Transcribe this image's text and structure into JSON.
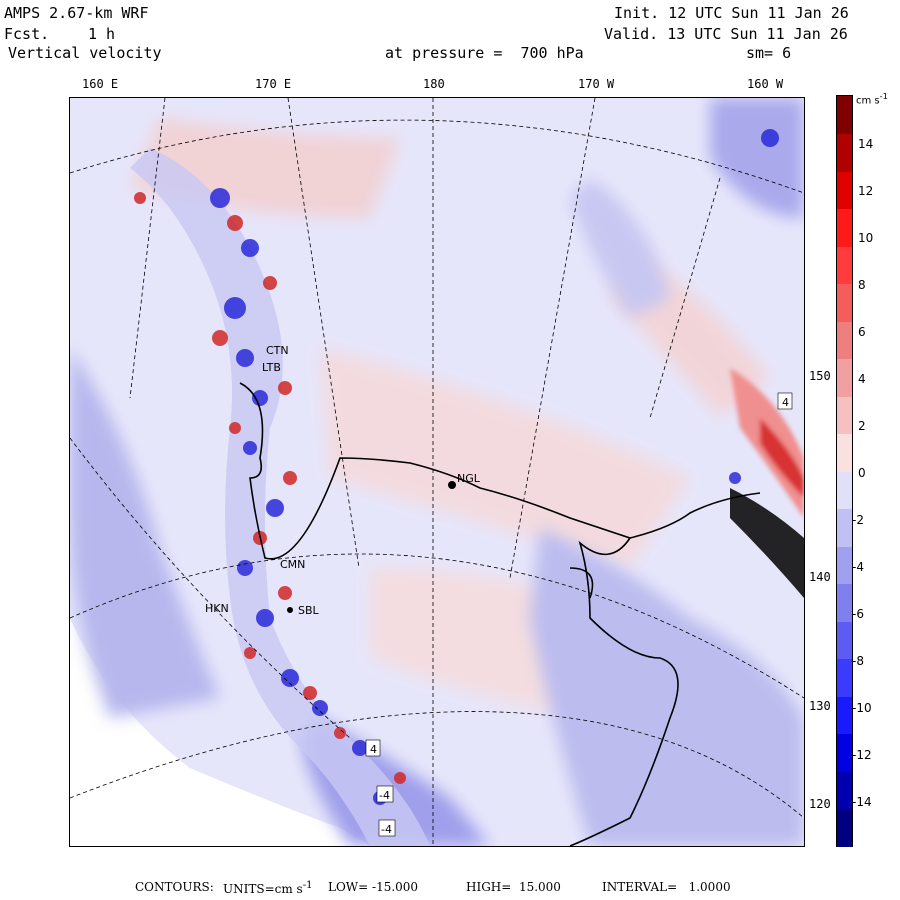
{
  "header": {
    "model": "AMPS 2.67-km WRF",
    "fcst_label": "Fcst.",
    "fcst_value": "1 h",
    "field": "Vertical velocity",
    "init": "Init. 12 UTC Sun 11 Jan 26",
    "valid": "Valid. 13 UTC Sun 11 Jan 26",
    "pressure_label": "at pressure =  700 hPa",
    "smoothing": "sm= 6"
  },
  "lon_labels": [
    "160 E",
    "170 E",
    "180",
    "170 W",
    "160 W"
  ],
  "lat_labels": [
    "150 W",
    "140 W",
    "130 W",
    "120 W"
  ],
  "stations": [
    "NGL",
    "CTN",
    "LTB",
    "HKN",
    "CMN",
    "SBL"
  ],
  "box_labels": [
    "4",
    "-4",
    "4",
    "-4"
  ],
  "colorbar": {
    "unit": "cm s",
    "unit_sup": "-1",
    "labels": [
      "14",
      "12",
      "10",
      "8",
      "6",
      "4",
      "2",
      "0",
      "-2",
      "-4",
      "-6",
      "-8",
      "-10",
      "-12",
      "-14"
    ],
    "colors": [
      "#000080",
      "#0000b0",
      "#0000e0",
      "#1a1aff",
      "#3b3bff",
      "#5c5cf5",
      "#7f7fee",
      "#a0a0f0",
      "#c0c0f4",
      "#e0e0fb",
      "#fbe0e0",
      "#f4c0c0",
      "#f0a0a0",
      "#ee7f7f",
      "#f55c5c",
      "#ff3b3b",
      "#ff1a1a",
      "#e00000",
      "#b00000",
      "#800000"
    ]
  },
  "footer": {
    "contours_label": "CONTOURS:",
    "units": "UNITS=cm s",
    "units_sup": "-1",
    "low": "LOW= -15.000",
    "high": "HIGH=  15.000",
    "interval": "INTERVAL=   1.0000"
  }
}
